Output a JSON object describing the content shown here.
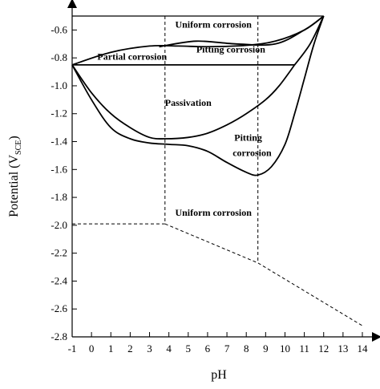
{
  "chart_data": {
    "type": "diagram",
    "xlabel": "pH",
    "ylabel_main": "Potential (V",
    "ylabel_sub": "SCE",
    "ylabel_close": ")",
    "xlim": [
      -1,
      14
    ],
    "ylim": [
      -2.8,
      -0.5
    ],
    "x_ticks": [
      -1,
      0,
      1,
      2,
      3,
      4,
      5,
      6,
      7,
      8,
      9,
      10,
      11,
      12,
      13,
      14
    ],
    "y_ticks": [
      -0.6,
      -0.8,
      -1.0,
      -1.2,
      -1.4,
      -1.6,
      -1.8,
      -2.0,
      -2.2,
      -2.4,
      -2.6,
      -2.8
    ],
    "x_tick_labels": [
      "-1",
      "0",
      "1",
      "2",
      "3",
      "4",
      "5",
      "6",
      "7",
      "8",
      "9",
      "10",
      "11",
      "12",
      "13",
      "14"
    ],
    "y_tick_labels": [
      "-0.6",
      "-0.8",
      "-1.0",
      "-1.2",
      "-1.4",
      "-1.6",
      "-1.8",
      "-2.0",
      "-2.2",
      "-2.4",
      "-2.6",
      "-2.8"
    ],
    "regions": [
      {
        "id": "uniform-top",
        "label": "Uniform corrosion",
        "x": 6.3,
        "y": -0.56
      },
      {
        "id": "pitting-top",
        "label": "Pitting corrosion",
        "x": 7.2,
        "y": -0.74
      },
      {
        "id": "partial",
        "label": "Partial corrosion",
        "x": 2.1,
        "y": -0.79
      },
      {
        "id": "passivation",
        "label": "Passivation",
        "x": 5.0,
        "y": -1.12
      },
      {
        "id": "pitting-lower-1",
        "label": "Pitting",
        "x": 8.1,
        "y": -1.37
      },
      {
        "id": "pitting-lower-2",
        "label": "corrosion",
        "x": 8.3,
        "y": -1.48
      },
      {
        "id": "uniform-bottom",
        "label": "Uniform corrosion",
        "x": 6.3,
        "y": -1.91
      }
    ],
    "solid_curves": [
      {
        "name": "top-boundary",
        "points": [
          [
            -1,
            -0.85
          ],
          [
            1,
            -0.76
          ],
          [
            3,
            -0.715
          ],
          [
            4.5,
            -0.715
          ],
          [
            6,
            -0.72
          ],
          [
            8,
            -0.71
          ],
          [
            9.5,
            -0.68
          ],
          [
            11,
            -0.6
          ],
          [
            12,
            -0.5
          ]
        ]
      },
      {
        "name": "pitting-upper",
        "points": [
          [
            3.5,
            -0.72
          ],
          [
            5.4,
            -0.68
          ],
          [
            7.5,
            -0.7
          ],
          [
            9.5,
            -0.7
          ],
          [
            11,
            -0.6
          ],
          [
            12,
            -0.5
          ]
        ]
      },
      {
        "name": "horizontal",
        "points": [
          [
            -1,
            -0.85
          ],
          [
            10.5,
            -0.85
          ]
        ]
      },
      {
        "name": "passivation-right",
        "points": [
          [
            10.5,
            -0.85
          ],
          [
            11.3,
            -0.7
          ],
          [
            12,
            -0.5
          ]
        ]
      },
      {
        "name": "outer-lower",
        "points": [
          [
            -1,
            -0.85
          ],
          [
            0,
            -1.1
          ],
          [
            1,
            -1.3
          ],
          [
            2,
            -1.38
          ],
          [
            3,
            -1.41
          ],
          [
            4,
            -1.42
          ],
          [
            5,
            -1.43
          ],
          [
            6,
            -1.47
          ],
          [
            7,
            -1.55
          ],
          [
            8,
            -1.62
          ],
          [
            8.6,
            -1.64
          ],
          [
            9.3,
            -1.58
          ],
          [
            10,
            -1.42
          ],
          [
            10.5,
            -1.2
          ],
          [
            11,
            -0.95
          ],
          [
            11.5,
            -0.7
          ],
          [
            12,
            -0.5
          ]
        ]
      },
      {
        "name": "inner-lower",
        "points": [
          [
            -1,
            -0.85
          ],
          [
            0,
            -1.05
          ],
          [
            1,
            -1.2
          ],
          [
            2,
            -1.3
          ],
          [
            3,
            -1.37
          ],
          [
            3.8,
            -1.38
          ],
          [
            5,
            -1.37
          ],
          [
            6,
            -1.34
          ],
          [
            7,
            -1.28
          ],
          [
            8,
            -1.2
          ],
          [
            9,
            -1.1
          ],
          [
            9.7,
            -1.0
          ],
          [
            10.5,
            -0.85
          ]
        ]
      }
    ],
    "dashed_lines": [
      {
        "name": "left-vertical",
        "points": [
          [
            3.8,
            -0.5
          ],
          [
            3.8,
            -1.99
          ]
        ]
      },
      {
        "name": "right-vertical",
        "points": [
          [
            8.6,
            -0.5
          ],
          [
            8.6,
            -2.27
          ]
        ]
      },
      {
        "name": "horizontal-lower",
        "points": [
          [
            -1,
            -1.99
          ],
          [
            3.8,
            -1.99
          ]
        ]
      },
      {
        "name": "sloped-lower",
        "points": [
          [
            3.8,
            -1.99
          ],
          [
            8.6,
            -2.27
          ],
          [
            14,
            -2.72
          ]
        ]
      }
    ],
    "top_boundary_line": [
      [
        -1,
        -0.5
      ],
      [
        12,
        -0.5
      ]
    ]
  }
}
